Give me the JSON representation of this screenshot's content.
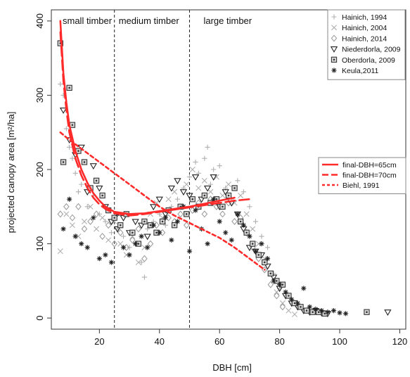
{
  "chart_data": {
    "type": "scatter",
    "title": "",
    "xlabel": "DBH [cm]",
    "ylabel": "projected canopy area [m²/ha]",
    "xlim": [
      4,
      122
    ],
    "ylim": [
      -15,
      415
    ],
    "x_ticks": [
      20,
      40,
      60,
      80,
      100,
      120
    ],
    "y_ticks": [
      0,
      100,
      200,
      300,
      400
    ],
    "x_tick_labels": [
      "20",
      "40",
      "60",
      "80",
      "100",
      "120"
    ],
    "y_tick_labels": [
      "0",
      "100",
      "200",
      "300",
      "400"
    ],
    "grid": false,
    "regions": [
      {
        "label": "small timber",
        "from": 4,
        "to": 25
      },
      {
        "label": "medium timber",
        "from": 25,
        "to": 50
      },
      {
        "label": "large timber",
        "from": 50,
        "to": 122
      }
    ],
    "boundaries": [
      25,
      50
    ],
    "legend_points_placement": "top-right",
    "legend_lines_placement": "right",
    "series": [
      {
        "name": "Hainich, 1994",
        "marker": "plus",
        "color": "#b0b0b0",
        "points": [
          [
            7,
            315
          ],
          [
            8,
            300
          ],
          [
            9,
            255
          ],
          [
            10,
            230
          ],
          [
            11,
            215
          ],
          [
            12,
            195
          ],
          [
            13,
            170
          ],
          [
            14,
            180
          ],
          [
            16,
            150
          ],
          [
            18,
            165
          ],
          [
            20,
            140
          ],
          [
            22,
            130
          ],
          [
            24,
            115
          ],
          [
            26,
            120
          ],
          [
            28,
            110
          ],
          [
            30,
            95
          ],
          [
            32,
            100
          ],
          [
            34,
            75
          ],
          [
            35,
            55
          ],
          [
            36,
            120
          ],
          [
            38,
            130
          ],
          [
            40,
            140
          ],
          [
            42,
            125
          ],
          [
            44,
            150
          ],
          [
            46,
            160
          ],
          [
            48,
            175
          ],
          [
            50,
            190
          ],
          [
            52,
            210
          ],
          [
            53,
            195
          ],
          [
            55,
            215
          ],
          [
            56,
            230
          ],
          [
            57,
            180
          ],
          [
            58,
            200
          ],
          [
            60,
            205
          ],
          [
            62,
            175
          ],
          [
            64,
            160
          ],
          [
            66,
            185
          ],
          [
            68,
            170
          ],
          [
            70,
            150
          ],
          [
            72,
            130
          ],
          [
            74,
            110
          ],
          [
            76,
            95
          ],
          [
            78,
            60
          ],
          [
            80,
            40
          ],
          [
            82,
            30
          ],
          [
            84,
            20
          ],
          [
            86,
            15
          ],
          [
            88,
            10
          ],
          [
            90,
            8
          ]
        ]
      },
      {
        "name": "Hainich, 2004",
        "marker": "x",
        "color": "#b0b0b0",
        "points": [
          [
            7,
            90
          ],
          [
            9,
            140
          ],
          [
            11,
            125
          ],
          [
            13,
            110
          ],
          [
            15,
            130
          ],
          [
            17,
            150
          ],
          [
            19,
            120
          ],
          [
            21,
            135
          ],
          [
            23,
            105
          ],
          [
            25,
            130
          ],
          [
            27,
            100
          ],
          [
            29,
            85
          ],
          [
            31,
            110
          ],
          [
            33,
            75
          ],
          [
            35,
            95
          ],
          [
            37,
            140
          ],
          [
            39,
            155
          ],
          [
            41,
            135
          ],
          [
            43,
            160
          ],
          [
            45,
            170
          ],
          [
            47,
            150
          ],
          [
            49,
            180
          ],
          [
            51,
            200
          ],
          [
            53,
            175
          ],
          [
            55,
            185
          ],
          [
            57,
            170
          ],
          [
            59,
            190
          ],
          [
            61,
            165
          ],
          [
            63,
            180
          ],
          [
            65,
            155
          ],
          [
            67,
            165
          ],
          [
            69,
            140
          ],
          [
            71,
            120
          ],
          [
            73,
            100
          ],
          [
            75,
            80
          ],
          [
            77,
            60
          ],
          [
            79,
            35
          ],
          [
            81,
            20
          ],
          [
            83,
            10
          ],
          [
            85,
            5
          ]
        ]
      },
      {
        "name": "Hainich, 2014",
        "marker": "diamond",
        "color": "#a0a0a0",
        "points": [
          [
            7,
            140
          ],
          [
            9,
            150
          ],
          [
            11,
            135
          ],
          [
            13,
            150
          ],
          [
            15,
            120
          ],
          [
            17,
            130
          ],
          [
            19,
            140
          ],
          [
            21,
            110
          ],
          [
            23,
            125
          ],
          [
            25,
            100
          ],
          [
            27,
            115
          ],
          [
            29,
            95
          ],
          [
            31,
            105
          ],
          [
            33,
            120
          ],
          [
            35,
            80
          ],
          [
            37,
            100
          ],
          [
            39,
            125
          ],
          [
            41,
            115
          ],
          [
            43,
            135
          ],
          [
            45,
            130
          ],
          [
            47,
            140
          ],
          [
            49,
            125
          ],
          [
            51,
            145
          ],
          [
            53,
            155
          ],
          [
            55,
            140
          ],
          [
            57,
            160
          ],
          [
            59,
            150
          ],
          [
            61,
            140
          ],
          [
            63,
            155
          ],
          [
            65,
            130
          ],
          [
            67,
            135
          ],
          [
            69,
            115
          ],
          [
            71,
            95
          ],
          [
            73,
            80
          ],
          [
            75,
            65
          ],
          [
            77,
            45
          ],
          [
            79,
            30
          ],
          [
            81,
            15
          ]
        ]
      },
      {
        "name": "Niederdorla, 2009",
        "marker": "triangle-down",
        "color": "#222222",
        "points": [
          [
            8,
            280
          ],
          [
            10,
            240
          ],
          [
            12,
            220
          ],
          [
            14,
            230
          ],
          [
            16,
            170
          ],
          [
            18,
            205
          ],
          [
            20,
            175
          ],
          [
            22,
            150
          ],
          [
            24,
            130
          ],
          [
            26,
            120
          ],
          [
            28,
            135
          ],
          [
            30,
            115
          ],
          [
            32,
            130
          ],
          [
            34,
            125
          ],
          [
            36,
            110
          ],
          [
            38,
            150
          ],
          [
            40,
            160
          ],
          [
            42,
            140
          ],
          [
            44,
            175
          ],
          [
            46,
            185
          ],
          [
            48,
            170
          ],
          [
            50,
            165
          ],
          [
            52,
            190
          ],
          [
            54,
            160
          ],
          [
            56,
            175
          ],
          [
            58,
            190
          ],
          [
            60,
            150
          ],
          [
            62,
            170
          ],
          [
            64,
            155
          ],
          [
            66,
            140
          ],
          [
            68,
            120
          ],
          [
            70,
            95
          ],
          [
            72,
            90
          ],
          [
            74,
            85
          ],
          [
            76,
            70
          ],
          [
            78,
            55
          ],
          [
            80,
            40
          ],
          [
            82,
            30
          ],
          [
            84,
            20
          ],
          [
            86,
            15
          ],
          [
            88,
            10
          ],
          [
            90,
            8
          ],
          [
            92,
            10
          ],
          [
            94,
            7
          ],
          [
            96,
            6
          ],
          [
            116,
            8
          ]
        ]
      },
      {
        "name": "Oberdorla, 2009",
        "marker": "square-dot",
        "color": "#333333",
        "points": [
          [
            7,
            370
          ],
          [
            8,
            210
          ],
          [
            10,
            310
          ],
          [
            11,
            260
          ],
          [
            13,
            225
          ],
          [
            15,
            210
          ],
          [
            17,
            175
          ],
          [
            19,
            185
          ],
          [
            21,
            165
          ],
          [
            23,
            145
          ],
          [
            25,
            135
          ],
          [
            27,
            125
          ],
          [
            29,
            140
          ],
          [
            31,
            115
          ],
          [
            33,
            100
          ],
          [
            35,
            130
          ],
          [
            37,
            125
          ],
          [
            39,
            115
          ],
          [
            41,
            130
          ],
          [
            43,
            145
          ],
          [
            45,
            125
          ],
          [
            47,
            150
          ],
          [
            49,
            140
          ],
          [
            51,
            160
          ],
          [
            53,
            150
          ],
          [
            55,
            165
          ],
          [
            57,
            155
          ],
          [
            59,
            160
          ],
          [
            61,
            150
          ],
          [
            63,
            165
          ],
          [
            65,
            175
          ],
          [
            67,
            130
          ],
          [
            69,
            115
          ],
          [
            71,
            100
          ],
          [
            73,
            85
          ],
          [
            75,
            75
          ],
          [
            77,
            60
          ],
          [
            79,
            50
          ],
          [
            81,
            45
          ],
          [
            83,
            30
          ],
          [
            85,
            20
          ],
          [
            87,
            15
          ],
          [
            89,
            10
          ],
          [
            91,
            8
          ],
          [
            93,
            8
          ],
          [
            95,
            6
          ],
          [
            109,
            8
          ]
        ]
      },
      {
        "name": "Keula,2011",
        "marker": "asterisk",
        "color": "#222222",
        "points": [
          [
            8,
            120
          ],
          [
            10,
            160
          ],
          [
            12,
            110
          ],
          [
            14,
            100
          ],
          [
            16,
            95
          ],
          [
            18,
            135
          ],
          [
            20,
            80
          ],
          [
            22,
            85
          ],
          [
            24,
            75
          ],
          [
            26,
            140
          ],
          [
            28,
            95
          ],
          [
            30,
            85
          ],
          [
            32,
            100
          ],
          [
            34,
            110
          ],
          [
            36,
            95
          ],
          [
            38,
            125
          ],
          [
            40,
            115
          ],
          [
            42,
            135
          ],
          [
            44,
            105
          ],
          [
            46,
            130
          ],
          [
            48,
            150
          ],
          [
            50,
            90
          ],
          [
            52,
            145
          ],
          [
            54,
            120
          ],
          [
            56,
            100
          ],
          [
            58,
            160
          ],
          [
            60,
            130
          ],
          [
            62,
            115
          ],
          [
            64,
            105
          ],
          [
            66,
            140
          ],
          [
            68,
            125
          ],
          [
            70,
            110
          ],
          [
            72,
            90
          ],
          [
            74,
            100
          ],
          [
            76,
            80
          ],
          [
            78,
            50
          ],
          [
            80,
            45
          ],
          [
            82,
            35
          ],
          [
            84,
            25
          ],
          [
            86,
            20
          ],
          [
            88,
            40
          ],
          [
            90,
            15
          ],
          [
            92,
            12
          ],
          [
            94,
            10
          ],
          [
            96,
            8
          ],
          [
            98,
            10
          ],
          [
            100,
            7
          ],
          [
            102,
            6
          ]
        ]
      },
      {
        "name": "final-DBH=65cm",
        "type": "line",
        "style": "solid",
        "color": "#ff2b2b",
        "x": [
          7,
          8,
          9,
          10,
          12,
          14,
          16,
          18,
          20,
          22,
          25,
          30,
          35,
          40,
          45,
          50,
          55,
          60,
          65
        ],
        "y": [
          400,
          330,
          290,
          260,
          225,
          200,
          182,
          168,
          158,
          150,
          143,
          140,
          141,
          144,
          147,
          150,
          154,
          158,
          162
        ]
      },
      {
        "name": "final-DBH=70cm",
        "type": "line",
        "style": "dashed",
        "color": "#ff2b2b",
        "x": [
          7,
          8,
          9,
          10,
          12,
          14,
          16,
          18,
          20,
          22,
          25,
          30,
          35,
          40,
          45,
          50,
          55,
          60,
          65,
          70
        ],
        "y": [
          385,
          320,
          280,
          250,
          215,
          192,
          175,
          162,
          153,
          147,
          141,
          138,
          140,
          143,
          146,
          149,
          152,
          155,
          158,
          160
        ]
      },
      {
        "name": "Biehl, 1991",
        "type": "line",
        "style": "dotted",
        "color": "#ff2b2b",
        "x": [
          7,
          10,
          15,
          20,
          25,
          30,
          35,
          40,
          45,
          50,
          55,
          60,
          65,
          70,
          75
        ],
        "y": [
          250,
          240,
          225,
          210,
          195,
          180,
          165,
          150,
          138,
          128,
          118,
          108,
          95,
          80,
          65
        ]
      }
    ]
  }
}
